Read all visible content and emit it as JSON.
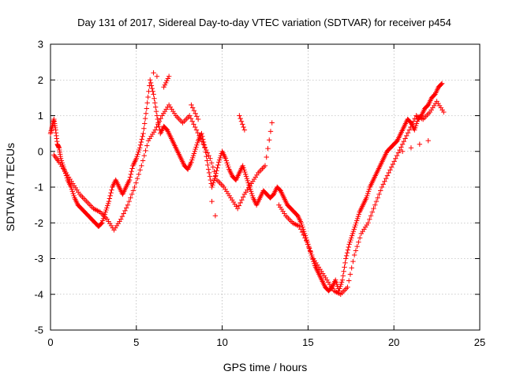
{
  "chart_data": {
    "type": "scatter",
    "title": "Day 131 of 2017, Sidereal Day-to-day VTEC variation (SDTVAR) for receiver p454",
    "xlabel": "GPS time / hours",
    "ylabel": "SDTVAR / TECUs",
    "xlim": [
      0,
      25
    ],
    "ylim": [
      -5,
      3
    ],
    "xticks": [
      0,
      5,
      10,
      15,
      20,
      25
    ],
    "yticks": [
      -5,
      -4,
      -3,
      -2,
      -1,
      0,
      1,
      2,
      3
    ],
    "xtick_labels": [
      "0",
      "5",
      "10",
      "15",
      "20",
      "25"
    ],
    "ytick_labels": [
      "-5",
      "-4",
      "-3",
      "-2",
      "-1",
      "0",
      "1",
      "2",
      "3"
    ],
    "grid": true,
    "marker": "+",
    "color": "#ff0000",
    "series": [
      {
        "name": "SDTVAR",
        "points": [
          [
            0.0,
            0.5
          ],
          [
            0.1,
            0.7
          ],
          [
            0.2,
            0.9
          ],
          [
            0.3,
            0.6
          ],
          [
            0.4,
            0.2
          ],
          [
            0.5,
            0.1
          ],
          [
            0.6,
            -0.2
          ],
          [
            0.8,
            -0.5
          ],
          [
            1.0,
            -0.8
          ],
          [
            1.2,
            -1.0
          ],
          [
            1.4,
            -1.3
          ],
          [
            1.6,
            -1.5
          ],
          [
            1.8,
            -1.6
          ],
          [
            2.0,
            -1.7
          ],
          [
            2.2,
            -1.8
          ],
          [
            2.4,
            -1.9
          ],
          [
            2.6,
            -2.0
          ],
          [
            2.8,
            -2.1
          ],
          [
            3.0,
            -2.0
          ],
          [
            3.2,
            -1.7
          ],
          [
            3.4,
            -1.4
          ],
          [
            3.6,
            -1.0
          ],
          [
            3.8,
            -0.8
          ],
          [
            4.0,
            -1.0
          ],
          [
            4.2,
            -1.2
          ],
          [
            4.4,
            -1.0
          ],
          [
            4.6,
            -0.8
          ],
          [
            4.8,
            -0.4
          ],
          [
            5.0,
            -0.2
          ],
          [
            5.2,
            0.1
          ],
          [
            5.4,
            0.5
          ],
          [
            5.6,
            1.2
          ],
          [
            5.8,
            2.0
          ],
          [
            6.0,
            1.6
          ],
          [
            6.2,
            1.0
          ],
          [
            6.4,
            0.5
          ],
          [
            6.6,
            0.7
          ],
          [
            6.8,
            0.6
          ],
          [
            7.0,
            0.4
          ],
          [
            7.2,
            0.2
          ],
          [
            7.4,
            0.0
          ],
          [
            7.6,
            -0.2
          ],
          [
            7.8,
            -0.4
          ],
          [
            8.0,
            -0.5
          ],
          [
            8.2,
            -0.3
          ],
          [
            8.4,
            0.0
          ],
          [
            8.6,
            0.3
          ],
          [
            8.8,
            0.5
          ],
          [
            9.0,
            0.1
          ],
          [
            9.2,
            -0.5
          ],
          [
            9.4,
            -1.0
          ],
          [
            9.6,
            -0.7
          ],
          [
            9.8,
            -0.3
          ],
          [
            10.0,
            0.0
          ],
          [
            10.2,
            -0.2
          ],
          [
            10.4,
            -0.5
          ],
          [
            10.6,
            -0.7
          ],
          [
            10.8,
            -0.8
          ],
          [
            11.0,
            -0.6
          ],
          [
            11.2,
            -0.4
          ],
          [
            11.4,
            -0.7
          ],
          [
            11.6,
            -1.0
          ],
          [
            11.8,
            -1.3
          ],
          [
            12.0,
            -1.5
          ],
          [
            12.2,
            -1.3
          ],
          [
            12.4,
            -1.1
          ],
          [
            12.6,
            -1.2
          ],
          [
            12.8,
            -1.3
          ],
          [
            13.0,
            -1.2
          ],
          [
            13.2,
            -1.0
          ],
          [
            13.4,
            -1.1
          ],
          [
            13.6,
            -1.3
          ],
          [
            13.8,
            -1.5
          ],
          [
            14.0,
            -1.6
          ],
          [
            14.2,
            -1.7
          ],
          [
            14.4,
            -1.8
          ],
          [
            14.6,
            -2.0
          ],
          [
            14.8,
            -2.3
          ],
          [
            15.0,
            -2.6
          ],
          [
            15.2,
            -2.9
          ],
          [
            15.4,
            -3.2
          ],
          [
            15.6,
            -3.4
          ],
          [
            15.8,
            -3.6
          ],
          [
            16.0,
            -3.8
          ],
          [
            16.2,
            -3.9
          ],
          [
            16.4,
            -3.8
          ],
          [
            16.6,
            -3.6
          ],
          [
            16.8,
            -3.9
          ],
          [
            17.0,
            -3.6
          ],
          [
            17.2,
            -3.0
          ],
          [
            17.4,
            -2.6
          ],
          [
            17.6,
            -2.3
          ],
          [
            17.8,
            -2.0
          ],
          [
            18.0,
            -1.7
          ],
          [
            18.2,
            -1.5
          ],
          [
            18.4,
            -1.3
          ],
          [
            18.6,
            -1.0
          ],
          [
            18.8,
            -0.8
          ],
          [
            19.0,
            -0.6
          ],
          [
            19.2,
            -0.4
          ],
          [
            19.4,
            -0.2
          ],
          [
            19.6,
            0.0
          ],
          [
            19.8,
            0.1
          ],
          [
            20.0,
            0.2
          ],
          [
            20.2,
            0.3
          ],
          [
            20.4,
            0.5
          ],
          [
            20.6,
            0.7
          ],
          [
            20.8,
            0.9
          ],
          [
            21.0,
            0.8
          ],
          [
            21.2,
            0.6
          ],
          [
            21.4,
            0.9
          ],
          [
            21.6,
            1.0
          ],
          [
            21.8,
            1.2
          ],
          [
            22.0,
            1.3
          ],
          [
            22.2,
            1.5
          ],
          [
            22.4,
            1.6
          ],
          [
            22.6,
            1.8
          ],
          [
            22.8,
            1.9
          ],
          [
            22.0,
            0.3
          ],
          [
            21.5,
            0.2
          ],
          [
            21.0,
            0.1
          ],
          [
            20.5,
            0.0
          ],
          [
            0.2,
            -0.1
          ],
          [
            0.5,
            -0.3
          ],
          [
            0.9,
            -0.6
          ],
          [
            1.3,
            -0.9
          ],
          [
            1.7,
            -1.2
          ],
          [
            2.1,
            -1.4
          ],
          [
            2.5,
            -1.6
          ],
          [
            2.9,
            -1.7
          ],
          [
            3.3,
            -1.9
          ],
          [
            3.7,
            -2.2
          ],
          [
            4.1,
            -1.9
          ],
          [
            4.5,
            -1.5
          ],
          [
            4.9,
            -1.0
          ],
          [
            5.3,
            -0.4
          ],
          [
            5.7,
            0.3
          ],
          [
            6.1,
            0.6
          ],
          [
            6.5,
            1.0
          ],
          [
            6.9,
            1.3
          ],
          [
            7.3,
            1.0
          ],
          [
            7.7,
            0.8
          ],
          [
            8.1,
            1.0
          ],
          [
            8.5,
            0.6
          ],
          [
            8.9,
            0.2
          ],
          [
            9.3,
            -0.2
          ],
          [
            9.7,
            -0.8
          ],
          [
            10.1,
            -1.0
          ],
          [
            10.5,
            -1.3
          ],
          [
            10.9,
            -1.6
          ],
          [
            11.3,
            -1.2
          ],
          [
            11.7,
            -0.9
          ],
          [
            12.1,
            -0.6
          ],
          [
            12.5,
            -0.4
          ],
          [
            12.9,
            0.8
          ],
          [
            11.0,
            1.0
          ],
          [
            11.3,
            0.6
          ],
          [
            13.3,
            -1.5
          ],
          [
            13.7,
            -1.8
          ],
          [
            14.1,
            -2.0
          ],
          [
            14.5,
            -2.1
          ],
          [
            14.9,
            -2.5
          ],
          [
            15.3,
            -3.0
          ],
          [
            15.7,
            -3.3
          ],
          [
            16.1,
            -3.6
          ],
          [
            16.5,
            -3.9
          ],
          [
            16.9,
            -4.0
          ],
          [
            17.3,
            -3.8
          ],
          [
            17.7,
            -2.9
          ],
          [
            18.1,
            -2.3
          ],
          [
            18.5,
            -2.0
          ],
          [
            18.9,
            -1.5
          ],
          [
            19.3,
            -1.0
          ],
          [
            19.7,
            -0.6
          ],
          [
            20.1,
            -0.2
          ],
          [
            20.5,
            0.2
          ],
          [
            20.9,
            0.6
          ],
          [
            21.3,
            1.0
          ],
          [
            21.7,
            0.9
          ],
          [
            22.1,
            1.1
          ],
          [
            22.5,
            1.4
          ],
          [
            22.9,
            1.1
          ],
          [
            6.2,
            2.1
          ],
          [
            6.0,
            2.2
          ],
          [
            6.6,
            1.8
          ],
          [
            6.9,
            2.1
          ],
          [
            8.2,
            1.3
          ],
          [
            8.6,
            0.9
          ],
          [
            9.6,
            -1.8
          ],
          [
            9.4,
            -1.4
          ]
        ]
      }
    ]
  }
}
